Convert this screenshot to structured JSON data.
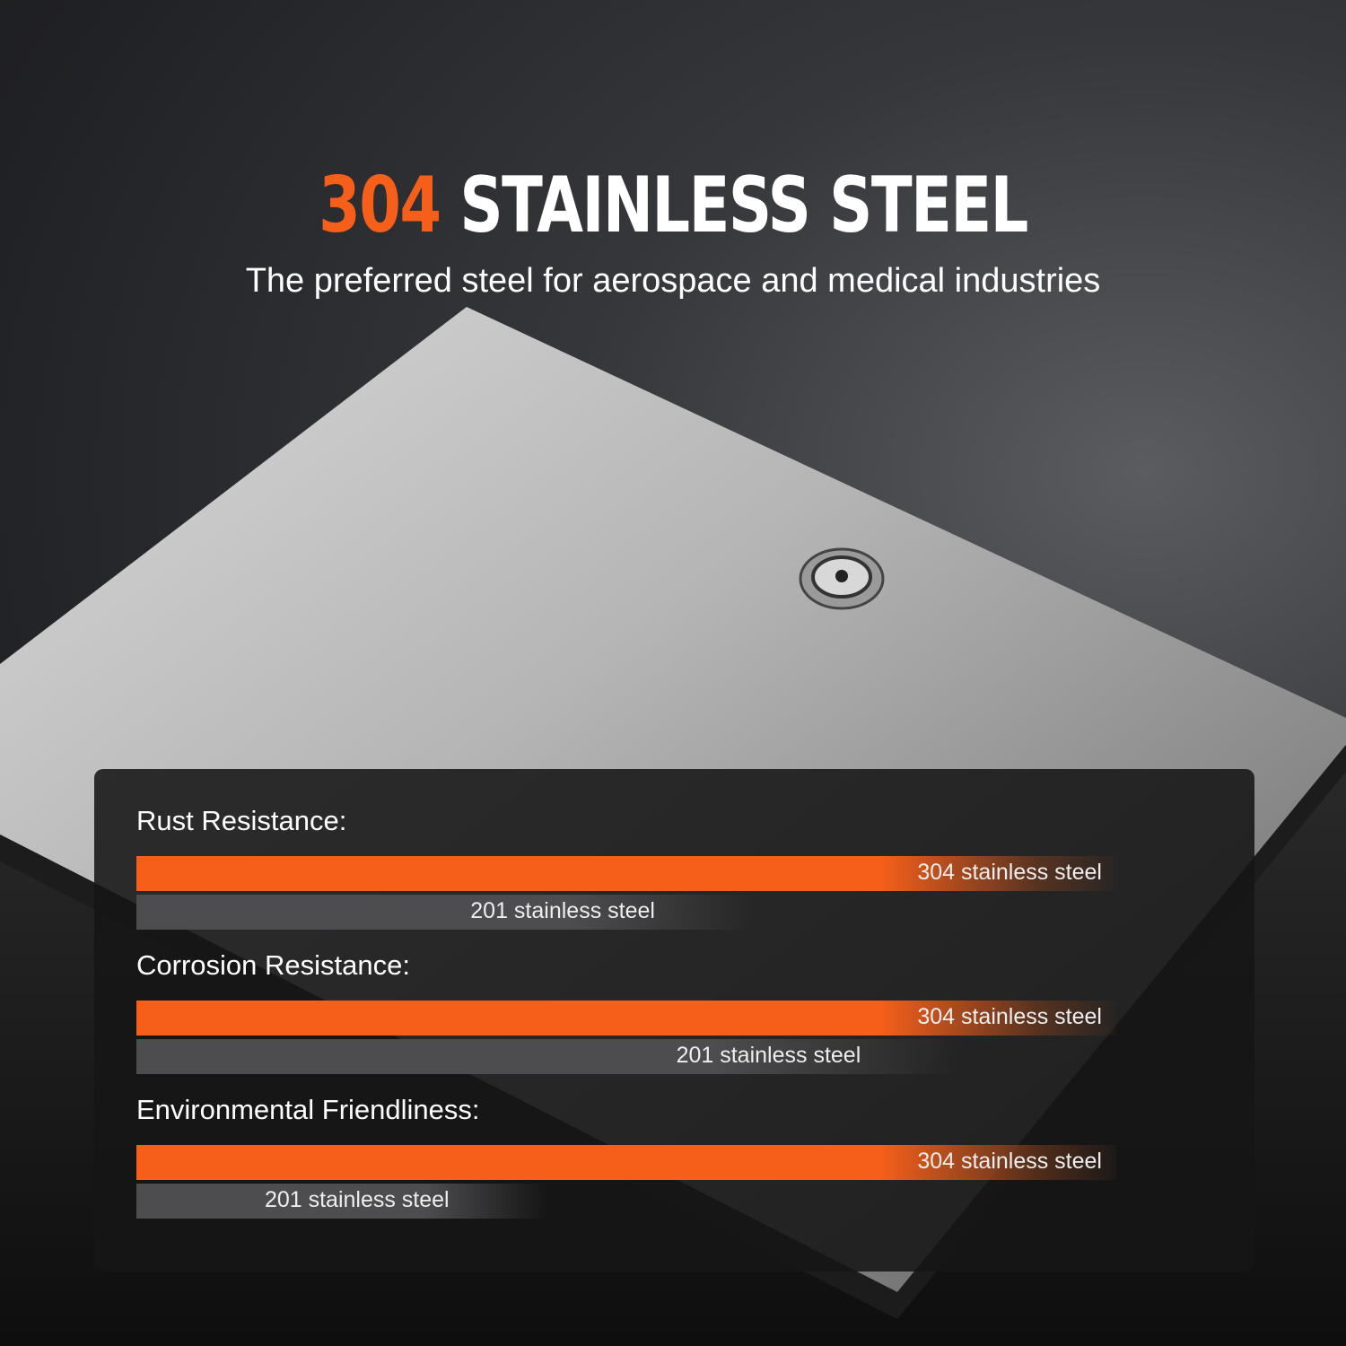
{
  "colors": {
    "accent": "#f55f1a",
    "bar_201": "#4d4d4f"
  },
  "header": {
    "title_accent": "304",
    "title_rest": "STAINLESS STEEL",
    "subtitle": "The preferred steel for aerospace and medical industries"
  },
  "comparison": [
    {
      "label": "Rust Resistance:",
      "bars": [
        {
          "name": "304 stainless steel",
          "level": 1.0
        },
        {
          "name": "201 stainless steel",
          "level": 0.63
        }
      ]
    },
    {
      "label": "Corrosion Resistance:",
      "bars": [
        {
          "name": "304 stainless steel",
          "level": 1.0
        },
        {
          "name": "201 stainless steel",
          "level": 0.84
        }
      ]
    },
    {
      "label": "Environmental Friendliness:",
      "bars": [
        {
          "name": "304 stainless steel",
          "level": 1.0
        },
        {
          "name": "201 stainless steel",
          "level": 0.42
        }
      ]
    }
  ]
}
